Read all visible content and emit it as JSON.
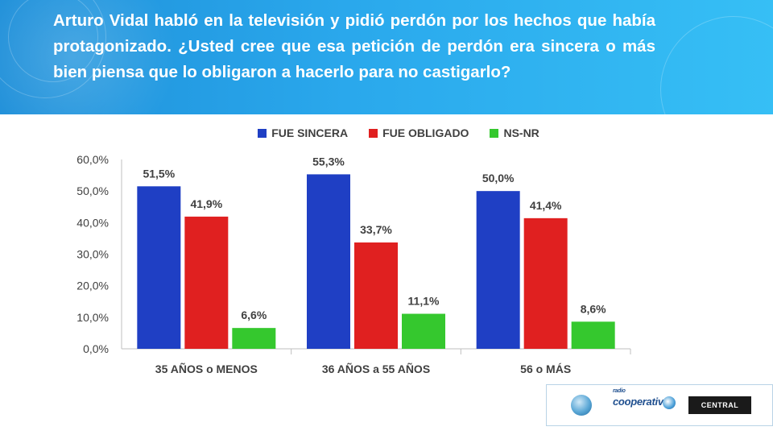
{
  "question": "Arturo Vidal habló en la televisión y pidió perdón por los hechos que había protagonizado. ¿Usted cree que esa petición de perdón era sincera o más bien piensa que lo obligaron a hacerlo para no castigarlo?",
  "logos": {
    "cooperativa": "cooperativa",
    "cooperativa_small": "radio",
    "universidad": "CENTRAL"
  },
  "chart_data": {
    "type": "bar",
    "categories": [
      "35 AÑOS o MENOS",
      "36 AÑOS a 55 AÑOS",
      "56 o MÁS"
    ],
    "series": [
      {
        "name": "FUE SINCERA",
        "color": "#1f3fc4",
        "values": [
          51.5,
          55.3,
          50.0
        ],
        "labels": [
          "51,5%",
          "55,3%",
          "50,0%"
        ]
      },
      {
        "name": "FUE OBLIGADO",
        "color": "#e02020",
        "values": [
          41.9,
          33.7,
          41.4
        ],
        "labels": [
          "41,9%",
          "33,7%",
          "41,4%"
        ]
      },
      {
        "name": "NS-NR",
        "color": "#35c82e",
        "values": [
          6.6,
          11.1,
          8.6
        ],
        "labels": [
          "6,6%",
          "11,1%",
          "8,6%"
        ]
      }
    ],
    "ylim": [
      0,
      60
    ],
    "yticks": [
      "0,0%",
      "10,0%",
      "20,0%",
      "30,0%",
      "40,0%",
      "50,0%",
      "60,0%"
    ],
    "legend": "top",
    "grid": false
  }
}
